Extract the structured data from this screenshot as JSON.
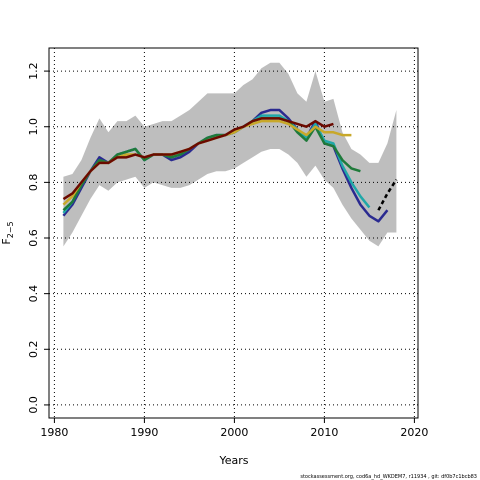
{
  "chart_data": {
    "type": "line",
    "xlabel": "Years",
    "ylabel": "F",
    "ylabel_subscript": "2−5",
    "footnote": "stockassessment.org, cod6a_hd_WKDEM7, r11934 , git: df0b7c1bcb83",
    "grid": true,
    "xlim": [
      1979.4,
      2020.4
    ],
    "ylim": [
      -0.047,
      1.283
    ],
    "xticks": [
      1980,
      1990,
      2000,
      2010,
      2020
    ],
    "yticks": [
      {
        "value": 0,
        "label": "0.0"
      },
      0.2,
      0.4,
      0.6,
      0.8,
      {
        "value": 1,
        "label": "1.0"
      },
      1.2
    ],
    "x": [
      1981,
      1982,
      1983,
      1984,
      1985,
      1986,
      1987,
      1988,
      1989,
      1990,
      1991,
      1992,
      1993,
      1994,
      1995,
      1996,
      1997,
      1998,
      1999,
      2000,
      2001,
      2002,
      2003,
      2004,
      2005,
      2006,
      2007,
      2008,
      2009,
      2010,
      2011,
      2012,
      2013,
      2014,
      2015,
      2016,
      2017,
      2018
    ],
    "band": {
      "color": "#bebebe",
      "upper": [
        0.82,
        0.83,
        0.88,
        0.96,
        1.03,
        0.98,
        1.02,
        1.02,
        1.04,
        1.0,
        1.01,
        1.02,
        1.02,
        1.04,
        1.06,
        1.09,
        1.12,
        1.12,
        1.12,
        1.12,
        1.15,
        1.17,
        1.21,
        1.23,
        1.23,
        1.19,
        1.12,
        1.09,
        1.2,
        1.09,
        1.1,
        0.98,
        0.92,
        0.9,
        0.87,
        0.87,
        0.94,
        1.06
      ],
      "lower": [
        0.57,
        0.62,
        0.68,
        0.74,
        0.79,
        0.77,
        0.8,
        0.81,
        0.82,
        0.78,
        0.8,
        0.79,
        0.78,
        0.78,
        0.79,
        0.81,
        0.83,
        0.84,
        0.84,
        0.85,
        0.87,
        0.89,
        0.91,
        0.92,
        0.92,
        0.9,
        0.87,
        0.82,
        0.86,
        0.81,
        0.78,
        0.72,
        0.67,
        0.63,
        0.59,
        0.57,
        0.62,
        0.62
      ]
    },
    "series": [
      {
        "color": "#2a2a90",
        "values": [
          0.68,
          0.72,
          0.78,
          0.84,
          0.89,
          0.87,
          0.9,
          0.91,
          0.92,
          0.88,
          0.9,
          0.9,
          0.88,
          0.89,
          0.91,
          0.94,
          0.96,
          0.97,
          0.97,
          0.98,
          1.0,
          1.02,
          1.05,
          1.06,
          1.06,
          1.03,
          0.99,
          0.96,
          1.02,
          0.94,
          0.93,
          0.85,
          0.78,
          0.72,
          0.68,
          0.66,
          0.7,
          null
        ]
      },
      {
        "color": "#20a8a8",
        "values": [
          0.69,
          0.73,
          0.79,
          0.84,
          0.88,
          0.87,
          0.9,
          0.91,
          0.92,
          0.88,
          0.9,
          0.9,
          0.89,
          0.9,
          0.92,
          0.94,
          0.96,
          0.97,
          0.97,
          0.98,
          1.0,
          1.02,
          1.04,
          1.04,
          1.04,
          1.02,
          0.99,
          0.96,
          1.01,
          0.95,
          0.94,
          0.86,
          0.8,
          0.75,
          0.71,
          null,
          null,
          null
        ]
      },
      {
        "color": "#1f7a3a",
        "values": [
          0.7,
          0.73,
          0.79,
          0.84,
          0.88,
          0.87,
          0.9,
          0.91,
          0.92,
          0.88,
          0.9,
          0.9,
          0.89,
          0.9,
          0.92,
          0.94,
          0.96,
          0.97,
          0.97,
          0.98,
          1.0,
          1.02,
          1.03,
          1.03,
          1.03,
          1.02,
          0.98,
          0.95,
          1.0,
          0.94,
          0.93,
          0.88,
          0.85,
          0.84,
          null,
          null,
          null,
          null
        ]
      },
      {
        "color": "#c8a82a",
        "values": [
          0.72,
          0.75,
          0.8,
          0.84,
          0.87,
          0.87,
          0.89,
          0.9,
          0.9,
          0.89,
          0.9,
          0.9,
          0.9,
          0.91,
          0.92,
          0.94,
          0.95,
          0.96,
          0.97,
          0.98,
          1.0,
          1.01,
          1.02,
          1.02,
          1.02,
          1.01,
          0.99,
          0.97,
          1.0,
          0.98,
          0.98,
          0.97,
          0.97,
          null,
          null,
          null,
          null,
          null
        ]
      },
      {
        "color": "#6b0a00",
        "values": [
          0.74,
          0.76,
          0.8,
          0.84,
          0.87,
          0.87,
          0.89,
          0.89,
          0.9,
          0.89,
          0.9,
          0.9,
          0.9,
          0.91,
          0.92,
          0.94,
          0.95,
          0.96,
          0.97,
          0.99,
          1.0,
          1.02,
          1.03,
          1.03,
          1.03,
          1.02,
          1.01,
          1.0,
          1.02,
          1.0,
          1.01,
          null,
          null,
          null,
          null,
          null,
          null,
          null
        ]
      },
      {
        "color": "#000000",
        "dashed": true,
        "values": [
          null,
          null,
          null,
          null,
          null,
          null,
          null,
          null,
          null,
          null,
          null,
          null,
          null,
          null,
          null,
          null,
          null,
          null,
          null,
          null,
          null,
          null,
          null,
          null,
          null,
          null,
          null,
          null,
          null,
          null,
          null,
          null,
          null,
          null,
          null,
          0.7,
          0.76,
          0.81
        ]
      }
    ]
  }
}
